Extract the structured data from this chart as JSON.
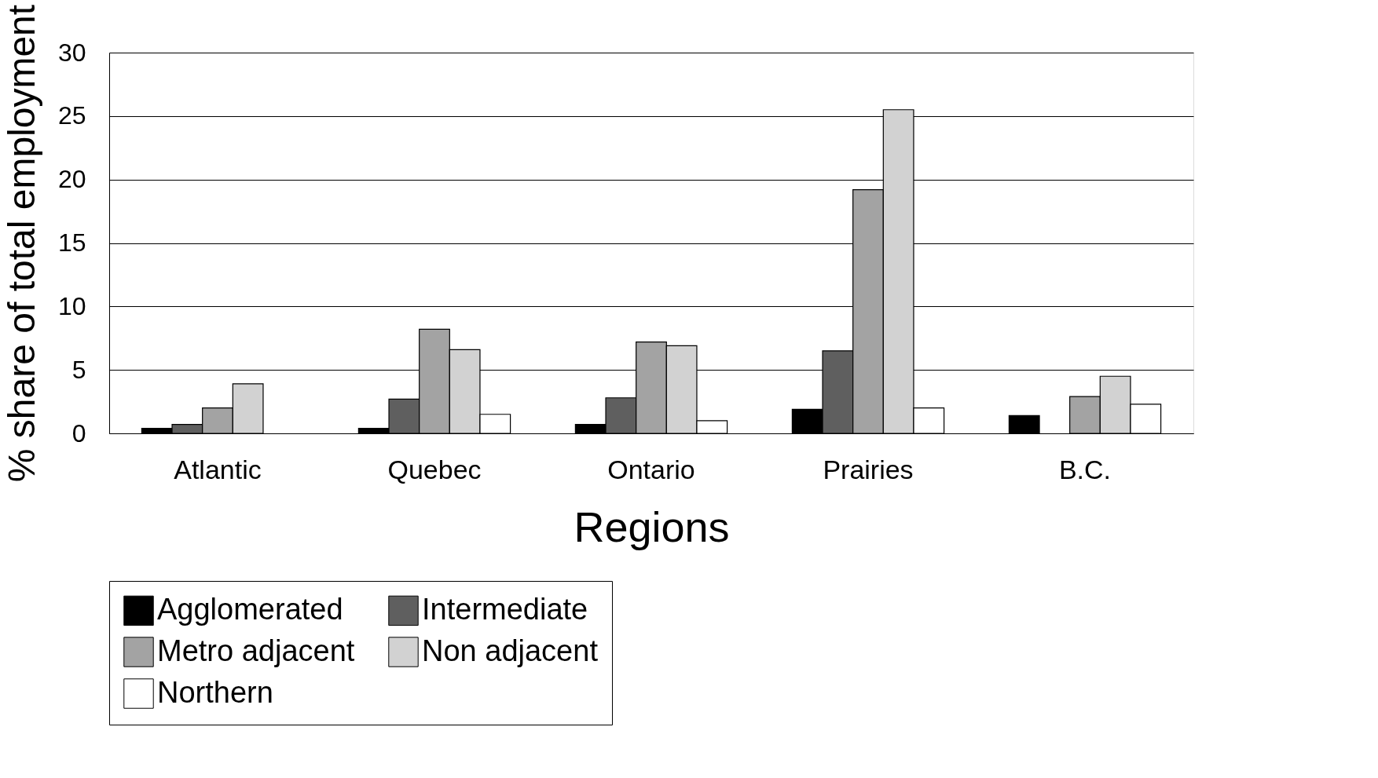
{
  "chart_data": {
    "type": "bar",
    "xlabel": "Regions",
    "ylabel": "% share of total employment",
    "categories": [
      "Atlantic",
      "Quebec",
      "Ontario",
      "Prairies",
      "B.C."
    ],
    "series": [
      {
        "name": "Agglomerated",
        "color": "#000000",
        "values": [
          0.4,
          0.4,
          0.7,
          1.9,
          1.4
        ]
      },
      {
        "name": "Intermediate",
        "color": "#5f5f5f",
        "values": [
          0.7,
          2.7,
          2.8,
          6.5,
          null
        ]
      },
      {
        "name": "Metro adjacent",
        "color": "#a3a3a3",
        "values": [
          2.0,
          8.2,
          7.2,
          19.2,
          2.9
        ]
      },
      {
        "name": "Non adjacent",
        "color": "#d2d2d2",
        "values": [
          3.9,
          6.6,
          6.9,
          25.5,
          4.5
        ]
      },
      {
        "name": "Northern",
        "color": "#ffffff",
        "values": [
          null,
          1.5,
          1.0,
          2.0,
          2.3
        ]
      }
    ],
    "ylim": [
      0,
      30
    ],
    "yticks": [
      0,
      5,
      10,
      15,
      20,
      25,
      30
    ],
    "grid": "y",
    "legend": "bottom"
  }
}
